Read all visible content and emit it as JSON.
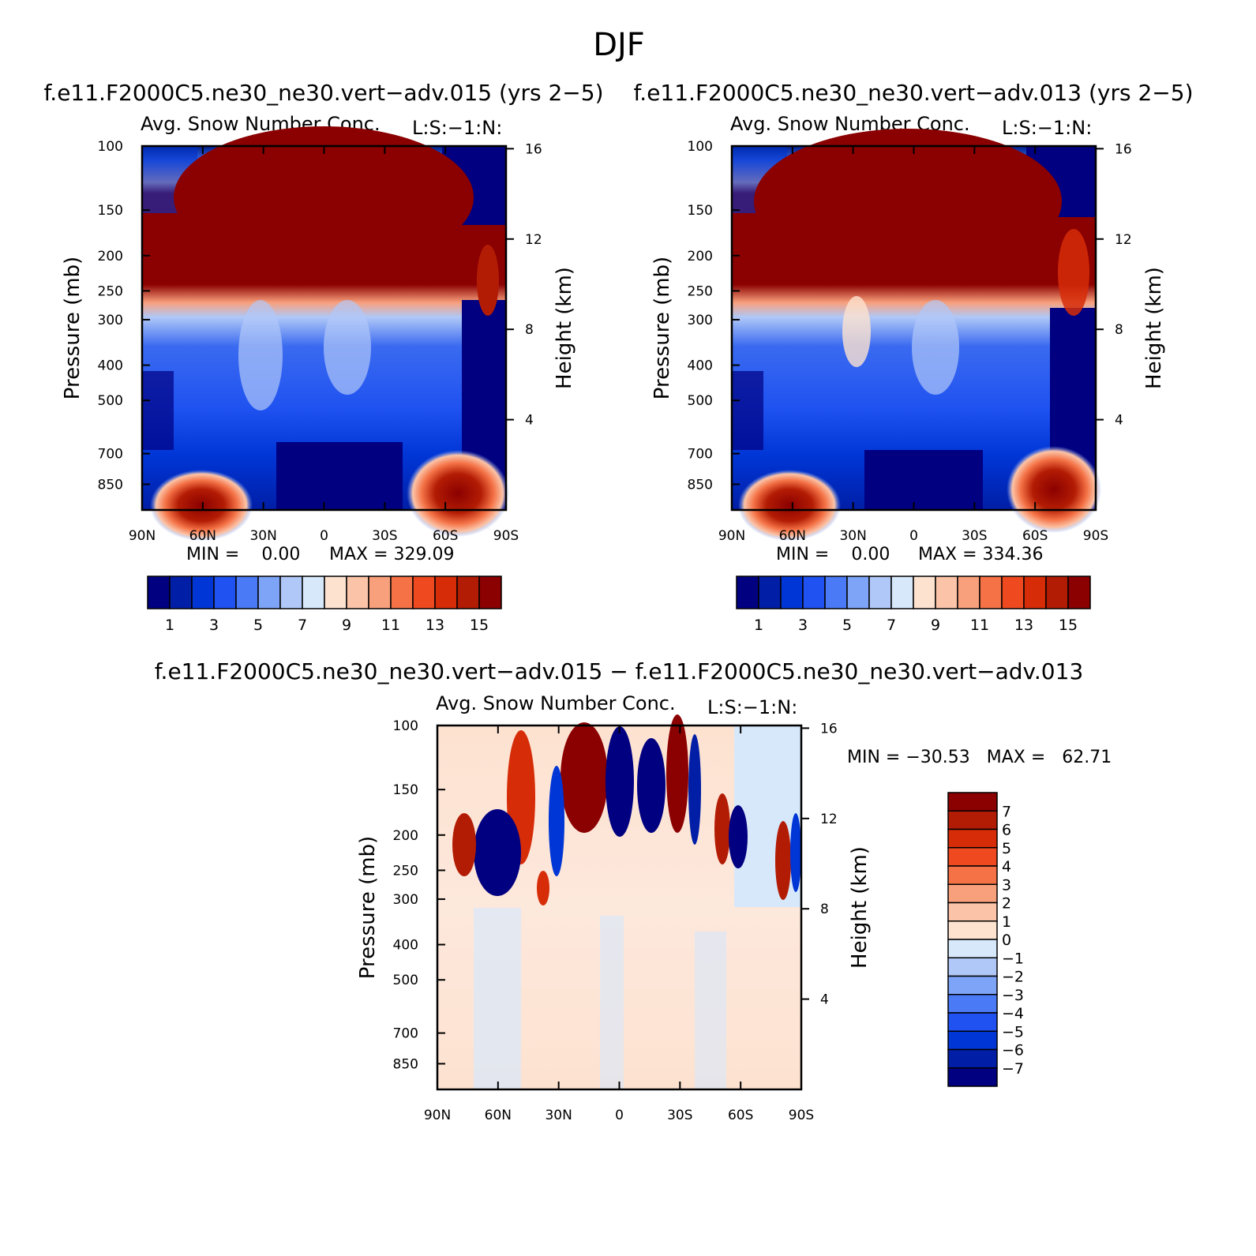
{
  "page_title": "DJF",
  "chart_data": [
    {
      "type": "heatmap",
      "subtype": "filled-contour",
      "title": "f.e11.F2000C5.ne30_ne30.vert−adv.015 (yrs 2−5)",
      "subtitle": "Avg. Snow Number Conc.",
      "corner_label": "L:S:−1:N:",
      "xlabel": "",
      "ylabel": "Pressure (mb)",
      "y2label": "Height (km)",
      "x_ticks": [
        "90N",
        "60N",
        "30N",
        "0",
        "30S",
        "60S",
        "90S"
      ],
      "y_ticks": [
        100,
        150,
        200,
        250,
        300,
        400,
        500,
        700,
        850
      ],
      "y2_ticks": [
        16,
        12,
        8,
        4
      ],
      "ylim": [
        100,
        1000
      ],
      "min_text": "MIN =    0.00",
      "max_text": "MAX = 329.09",
      "min": 0.0,
      "max": 329.09,
      "colorbar_labels": [
        "1",
        "3",
        "5",
        "7",
        "9",
        "11",
        "13",
        "15"
      ],
      "colorbar_levels": [
        1,
        2,
        3,
        4,
        5,
        6,
        7,
        8,
        9,
        10,
        11,
        12,
        13,
        14,
        15
      ]
    },
    {
      "type": "heatmap",
      "subtype": "filled-contour",
      "title": "f.e11.F2000C5.ne30_ne30.vert−adv.013 (yrs 2−5)",
      "subtitle": "Avg. Snow Number Conc.",
      "corner_label": "L:S:−1:N:",
      "xlabel": "",
      "ylabel": "Pressure (mb)",
      "y2label": "Height (km)",
      "x_ticks": [
        "90N",
        "60N",
        "30N",
        "0",
        "30S",
        "60S",
        "90S"
      ],
      "y_ticks": [
        100,
        150,
        200,
        250,
        300,
        400,
        500,
        700,
        850
      ],
      "y2_ticks": [
        16,
        12,
        8,
        4
      ],
      "ylim": [
        100,
        1000
      ],
      "min_text": "MIN =    0.00",
      "max_text": "MAX = 334.36",
      "min": 0.0,
      "max": 334.36,
      "colorbar_labels": [
        "1",
        "3",
        "5",
        "7",
        "9",
        "11",
        "13",
        "15"
      ],
      "colorbar_levels": [
        1,
        2,
        3,
        4,
        5,
        6,
        7,
        8,
        9,
        10,
        11,
        12,
        13,
        14,
        15
      ]
    },
    {
      "type": "heatmap",
      "subtype": "filled-contour-difference",
      "title": "f.e11.F2000C5.ne30_ne30.vert−adv.015 − f.e11.F2000C5.ne30_ne30.vert−adv.013",
      "subtitle": "Avg. Snow Number Conc.",
      "corner_label": "L:S:−1:N:",
      "xlabel": "",
      "ylabel": "Pressure (mb)",
      "y2label": "Height (km)",
      "x_ticks": [
        "90N",
        "60N",
        "30N",
        "0",
        "30S",
        "60S",
        "90S"
      ],
      "y_ticks": [
        100,
        150,
        200,
        250,
        300,
        400,
        500,
        700,
        850
      ],
      "y2_ticks": [
        16,
        12,
        8,
        4
      ],
      "ylim": [
        100,
        1000
      ],
      "minmax_text": "MIN = −30.53   MAX =   62.71",
      "min": -30.53,
      "max": 62.71,
      "colorbar_labels": [
        "7",
        "6",
        "5",
        "4",
        "3",
        "2",
        "1",
        "0",
        "−1",
        "−2",
        "−3",
        "−4",
        "−5",
        "−6",
        "−7"
      ],
      "colorbar_levels": [
        7,
        6,
        5,
        4,
        3,
        2,
        1,
        0,
        -1,
        -2,
        -3,
        -4,
        -5,
        -6,
        -7
      ]
    }
  ],
  "palette": [
    "#000080",
    "#001ea6",
    "#0036d6",
    "#1f52f0",
    "#4a7af5",
    "#7ea4f7",
    "#b0c8f8",
    "#d7e8fb",
    "#fde2d0",
    "#fbc4a8",
    "#f8a07c",
    "#f47246",
    "#ef4a1f",
    "#d62c08",
    "#b31c04",
    "#8b0000"
  ]
}
